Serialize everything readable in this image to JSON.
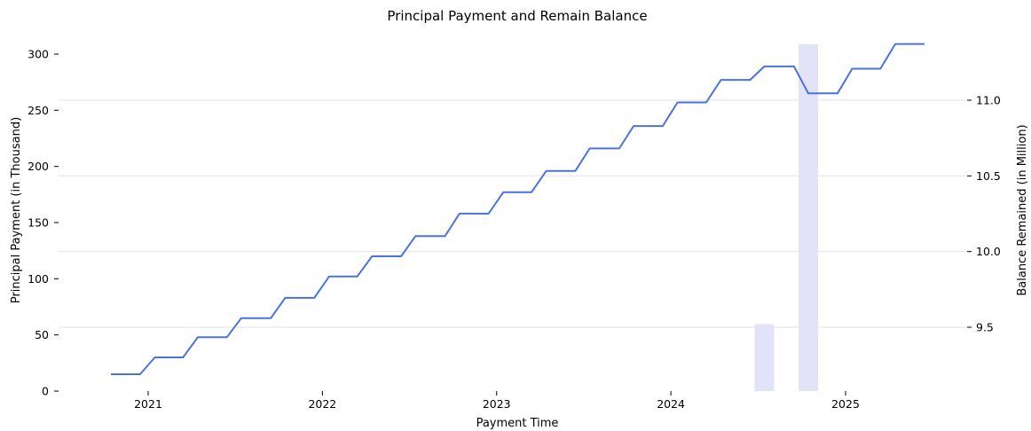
{
  "chart_data": {
    "type": "line",
    "title": "Principal Payment and Remain Balance",
    "xlabel": "Payment Time",
    "ylabel_left": "Principal Payment (in Thousand)",
    "ylabel_right": "Balance Remained (in Million)",
    "x_ticks": [
      "2021",
      "2022",
      "2023",
      "2024",
      "2025"
    ],
    "y_left_ticks": [
      0,
      50,
      100,
      150,
      200,
      250,
      300
    ],
    "y_right_ticks": [
      "9.5",
      "10.0",
      "10.5",
      "11.0"
    ],
    "ylim_left": [
      0,
      310
    ],
    "ylim_right": [
      9.0,
      11.4
    ],
    "grid": "horizontal (right axis)",
    "colors": {
      "line": "#4a72e0",
      "bars": "#e3e3f7",
      "grid": "#e6e6e6"
    },
    "series": [
      {
        "type": "line",
        "axis": "left",
        "x": [
          "2020-10-15",
          "2020-12-15",
          "2021-01-15",
          "2021-03-15",
          "2021-04-15",
          "2021-06-15",
          "2021-07-15",
          "2021-09-15",
          "2021-10-15",
          "2021-12-15",
          "2022-01-15",
          "2022-03-15",
          "2022-04-15",
          "2022-06-15",
          "2022-07-15",
          "2022-09-15",
          "2022-10-15",
          "2022-12-15",
          "2023-01-15",
          "2023-03-15",
          "2023-04-15",
          "2023-06-15",
          "2023-07-15",
          "2023-09-15",
          "2023-10-15",
          "2023-12-15",
          "2024-01-15",
          "2024-03-15",
          "2024-04-15",
          "2024-06-15",
          "2024-07-15",
          "2024-09-15",
          "2024-10-15",
          "2024-12-15",
          "2025-01-15",
          "2025-03-15",
          "2025-04-15",
          "2025-06-15"
        ],
        "values": [
          15,
          15,
          30,
          30,
          48,
          48,
          65,
          65,
          83,
          83,
          102,
          102,
          120,
          120,
          138,
          138,
          158,
          158,
          177,
          177,
          196,
          196,
          216,
          216,
          236,
          236,
          257,
          257,
          277,
          277,
          289,
          289,
          265,
          265,
          287,
          287,
          309,
          309
        ]
      },
      {
        "type": "bar",
        "axis": "right",
        "x": [
          "2024-07-15",
          "2024-10-15"
        ],
        "values": [
          9.52,
          11.37
        ]
      }
    ]
  }
}
